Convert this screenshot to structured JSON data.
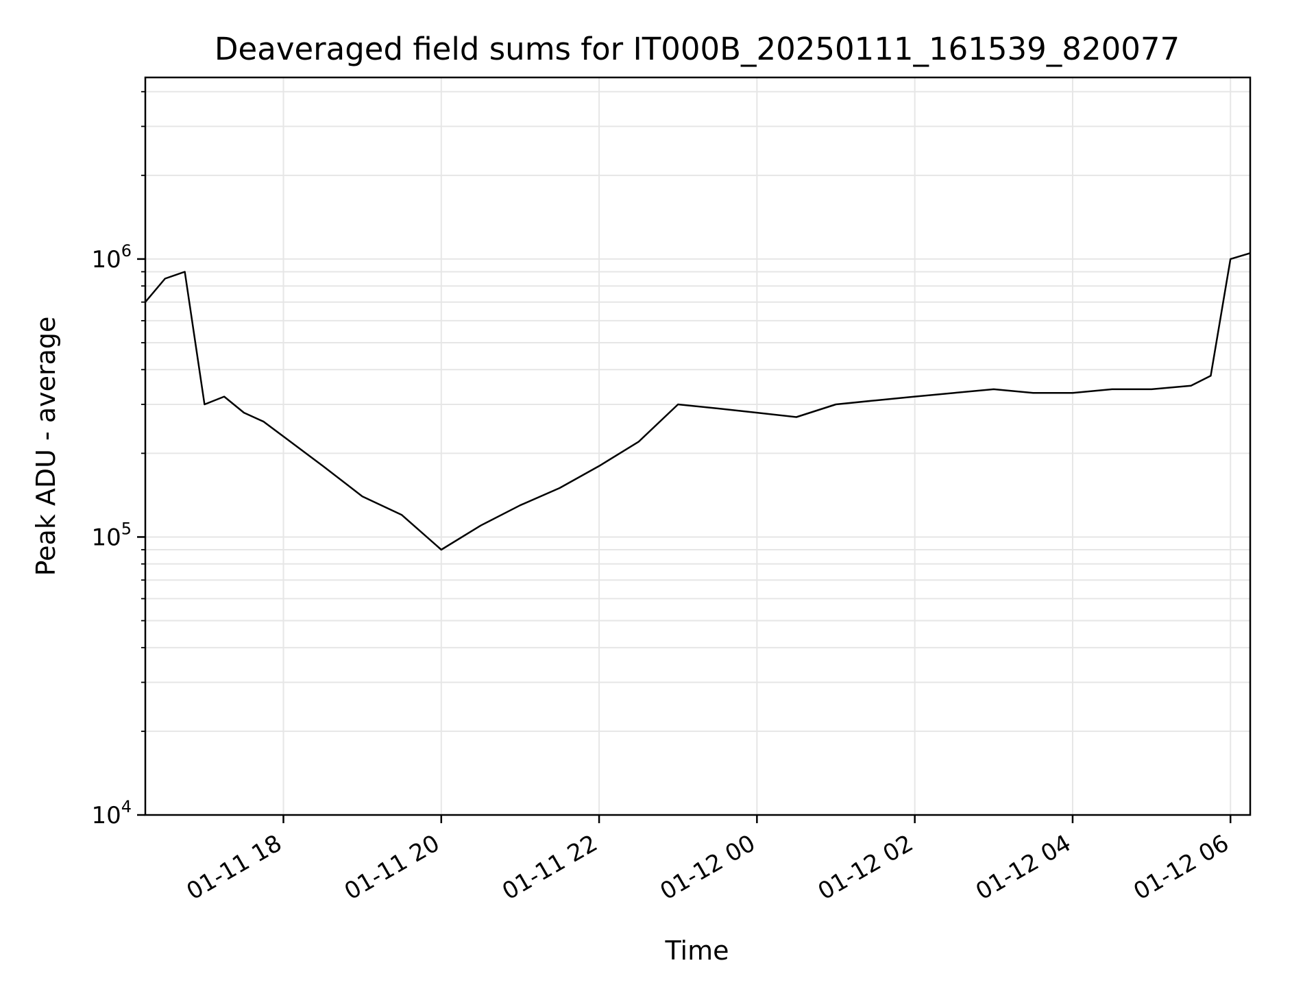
{
  "chart_data": {
    "type": "line",
    "title": "Deaveraged field sums for IT000B_20250111_161539_820077",
    "xlabel": "Time",
    "ylabel": "Peak ADU - average",
    "xlim": [
      "2025-01-11 16:15",
      "2025-01-12 06:15"
    ],
    "ylim": [
      10000,
      4500000
    ],
    "yscale": "log",
    "grid": true,
    "x_ticks": [
      "01-11 18",
      "01-11 20",
      "01-11 22",
      "01-12 00",
      "01-12 02",
      "01-12 04",
      "01-12 06"
    ],
    "y_ticks": [
      {
        "base": "10",
        "exp": "4",
        "value": 10000
      },
      {
        "base": "10",
        "exp": "5",
        "value": 100000
      },
      {
        "base": "10",
        "exp": "6",
        "value": 1000000
      }
    ],
    "line_color": "#000000",
    "series": [
      {
        "x": [
          "2025-01-11 16:15",
          "2025-01-11 16:30",
          "2025-01-11 16:45",
          "2025-01-11 17:00",
          "2025-01-11 17:15",
          "2025-01-11 17:30",
          "2025-01-11 17:45",
          "2025-01-11 18:00",
          "2025-01-11 18:30",
          "2025-01-11 19:00",
          "2025-01-11 19:30",
          "2025-01-11 20:00",
          "2025-01-11 20:30",
          "2025-01-11 21:00",
          "2025-01-11 21:30",
          "2025-01-11 22:00",
          "2025-01-11 22:30",
          "2025-01-11 23:00",
          "2025-01-11 23:30",
          "2025-01-12 00:00",
          "2025-01-12 00:30",
          "2025-01-12 01:00",
          "2025-01-12 01:30",
          "2025-01-12 02:00",
          "2025-01-12 02:30",
          "2025-01-12 03:00",
          "2025-01-12 03:30",
          "2025-01-12 04:00",
          "2025-01-12 04:30",
          "2025-01-12 05:00",
          "2025-01-12 05:30",
          "2025-01-12 05:45",
          "2025-01-12 06:00",
          "2025-01-12 06:15"
        ],
        "values": [
          700000,
          850000,
          900000,
          300000,
          320000,
          280000,
          260000,
          230000,
          180000,
          140000,
          120000,
          90000,
          110000,
          130000,
          150000,
          180000,
          220000,
          300000,
          290000,
          280000,
          270000,
          300000,
          310000,
          320000,
          330000,
          340000,
          330000,
          330000,
          340000,
          340000,
          350000,
          380000,
          1000000,
          1050000
        ]
      }
    ]
  }
}
